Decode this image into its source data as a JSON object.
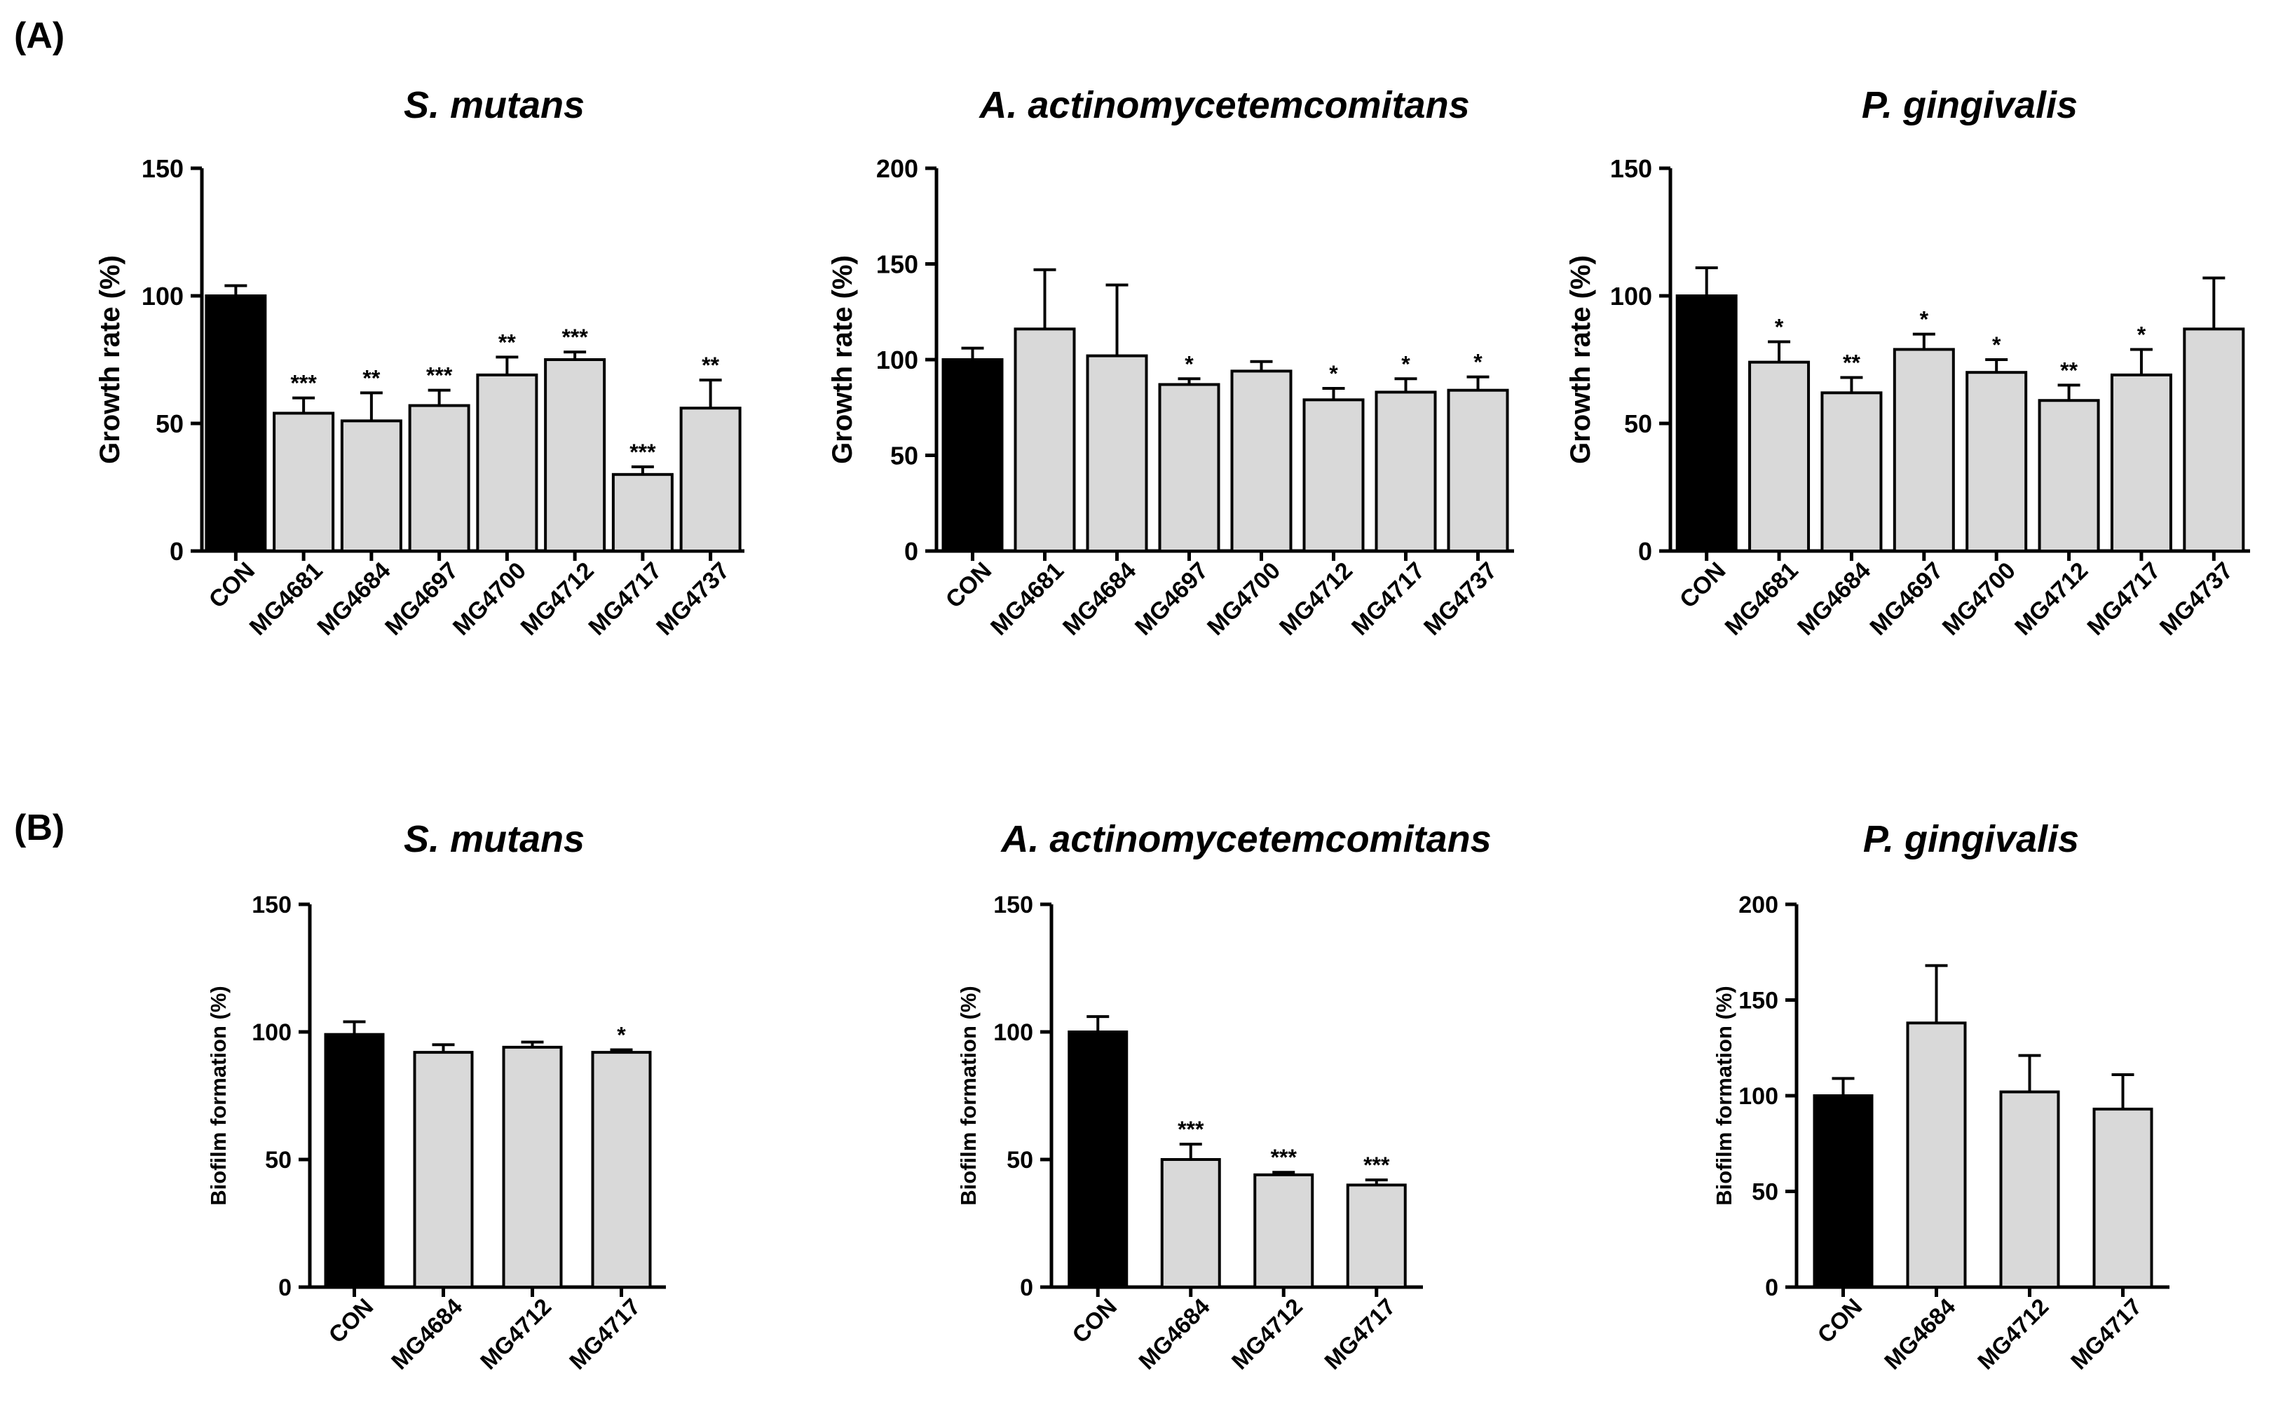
{
  "figure": {
    "panel_labels": [
      "(A)",
      "(B)"
    ]
  },
  "colors": {
    "control_bar": "#000000",
    "treatment_bar": "#d9d9d9",
    "axis": "#000000"
  },
  "chart_data": [
    {
      "id": "A1",
      "panel": "A",
      "type": "bar",
      "title": "S. mutans",
      "xlabel": "",
      "ylabel": "Growth rate (%)",
      "ylim": [
        0,
        150
      ],
      "yticks": [
        0,
        50,
        100,
        150
      ],
      "categories": [
        "CON",
        "MG4681",
        "MG4684",
        "MG4697",
        "MG4700",
        "MG4712",
        "MG4717",
        "MG4737"
      ],
      "values": [
        100,
        54,
        51,
        57,
        69,
        75,
        30,
        56
      ],
      "errors": [
        4,
        6,
        11,
        6,
        7,
        3,
        3,
        11
      ],
      "significance": [
        "",
        "***",
        "**",
        "***",
        "**",
        "***",
        "***",
        "**"
      ],
      "grid": false
    },
    {
      "id": "A2",
      "panel": "A",
      "type": "bar",
      "title": "A. actinomycetemcomitans",
      "xlabel": "",
      "ylabel": "Growth rate (%)",
      "ylim": [
        0,
        200
      ],
      "yticks": [
        0,
        50,
        100,
        150,
        200
      ],
      "categories": [
        "CON",
        "MG4681",
        "MG4684",
        "MG4697",
        "MG4700",
        "MG4712",
        "MG4717",
        "MG4737"
      ],
      "values": [
        100,
        116,
        102,
        87,
        94,
        79,
        83,
        84
      ],
      "errors": [
        6,
        31,
        37,
        3,
        5,
        6,
        7,
        7
      ],
      "significance": [
        "",
        "",
        "",
        "*",
        "",
        "*",
        "*",
        "*"
      ],
      "grid": false
    },
    {
      "id": "A3",
      "panel": "A",
      "type": "bar",
      "title": "P. gingivalis",
      "xlabel": "",
      "ylabel": "Growth rate (%)",
      "ylim": [
        0,
        150
      ],
      "yticks": [
        0,
        50,
        100,
        150
      ],
      "categories": [
        "CON",
        "MG4681",
        "MG4684",
        "MG4697",
        "MG4700",
        "MG4712",
        "MG4717",
        "MG4737"
      ],
      "values": [
        100,
        74,
        62,
        79,
        70,
        59,
        69,
        87
      ],
      "errors": [
        11,
        8,
        6,
        6,
        5,
        6,
        10,
        20
      ],
      "significance": [
        "",
        "*",
        "**",
        "*",
        "*",
        "**",
        "*",
        ""
      ],
      "grid": false
    },
    {
      "id": "B1",
      "panel": "B",
      "type": "bar",
      "title": "S. mutans",
      "xlabel": "",
      "ylabel": "Biofilm formation (%)",
      "ylim": [
        0,
        150
      ],
      "yticks": [
        0,
        50,
        100,
        150
      ],
      "categories": [
        "CON",
        "MG4684",
        "MG4712",
        "MG4717"
      ],
      "values": [
        99,
        92,
        94,
        92
      ],
      "errors": [
        5,
        3,
        2,
        1
      ],
      "significance": [
        "",
        "",
        "",
        "*"
      ],
      "grid": false
    },
    {
      "id": "B2",
      "panel": "B",
      "type": "bar",
      "title": "A. actinomycetemcomitans",
      "xlabel": "",
      "ylabel": "Biofilm formation (%)",
      "ylim": [
        0,
        150
      ],
      "yticks": [
        0,
        50,
        100,
        150
      ],
      "categories": [
        "CON",
        "MG4684",
        "MG4712",
        "MG4717"
      ],
      "values": [
        100,
        50,
        44,
        40
      ],
      "errors": [
        6,
        6,
        1,
        2
      ],
      "significance": [
        "",
        "***",
        "***",
        "***"
      ],
      "grid": false
    },
    {
      "id": "B3",
      "panel": "B",
      "type": "bar",
      "title": "P. gingivalis",
      "xlabel": "",
      "ylabel": "Biofilm formation (%)",
      "ylim": [
        0,
        200
      ],
      "yticks": [
        0,
        50,
        100,
        150,
        200
      ],
      "categories": [
        "CON",
        "MG4684",
        "MG4712",
        "MG4717"
      ],
      "values": [
        100,
        138,
        102,
        93
      ],
      "errors": [
        9,
        30,
        19,
        18
      ],
      "significance": [
        "",
        "",
        "",
        ""
      ],
      "grid": false
    }
  ]
}
